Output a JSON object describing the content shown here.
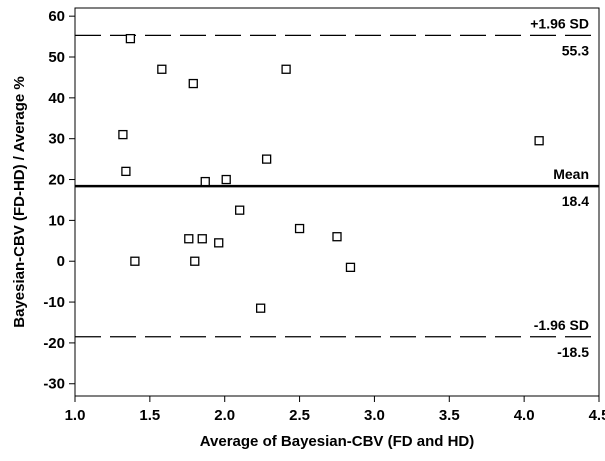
{
  "chart_data": {
    "type": "scatter",
    "xlabel": "Average of Bayesian-CBV (FD and HD)",
    "ylabel": "Bayesian-CBV (FD-HD) / Average %",
    "xlim": [
      1.0,
      4.5
    ],
    "ylim": [
      -33,
      62
    ],
    "x_ticks": [
      1.0,
      1.5,
      2.0,
      2.5,
      3.0,
      3.5,
      4.0,
      4.5
    ],
    "x_tick_labels": [
      "1.0",
      "1.5",
      "2.0",
      "2.5",
      "3.0",
      "3.5",
      "4.0",
      "4.5"
    ],
    "y_ticks": [
      -30,
      -20,
      -10,
      0,
      10,
      20,
      30,
      40,
      50,
      60
    ],
    "y_tick_labels": [
      "-30",
      "-20",
      "-10",
      "0",
      "10",
      "20",
      "30",
      "40",
      "50",
      "60"
    ],
    "grid": false,
    "points": [
      {
        "x": 1.32,
        "y": 31.0
      },
      {
        "x": 1.34,
        "y": 22.0
      },
      {
        "x": 1.37,
        "y": 54.5
      },
      {
        "x": 1.4,
        "y": 0.0
      },
      {
        "x": 1.58,
        "y": 47.0
      },
      {
        "x": 1.76,
        "y": 5.5
      },
      {
        "x": 1.79,
        "y": 43.5
      },
      {
        "x": 1.8,
        "y": 0.0
      },
      {
        "x": 1.85,
        "y": 5.5
      },
      {
        "x": 1.87,
        "y": 19.5
      },
      {
        "x": 1.96,
        "y": 4.5
      },
      {
        "x": 2.01,
        "y": 20.0
      },
      {
        "x": 2.1,
        "y": 12.5
      },
      {
        "x": 2.24,
        "y": -11.5
      },
      {
        "x": 2.28,
        "y": 25.0
      },
      {
        "x": 2.41,
        "y": 47.0
      },
      {
        "x": 2.5,
        "y": 8.0
      },
      {
        "x": 2.75,
        "y": 6.0
      },
      {
        "x": 2.84,
        "y": -1.5
      },
      {
        "x": 4.1,
        "y": 29.5
      }
    ],
    "reference_lines": [
      {
        "name": "+1.96 SD",
        "value": 55.3,
        "value_label": "55.3",
        "style": "dashed"
      },
      {
        "name": "Mean",
        "value": 18.4,
        "value_label": "18.4",
        "style": "solid"
      },
      {
        "name": "-1.96 SD",
        "value": -18.5,
        "value_label": "-18.5",
        "style": "dashed"
      }
    ]
  }
}
